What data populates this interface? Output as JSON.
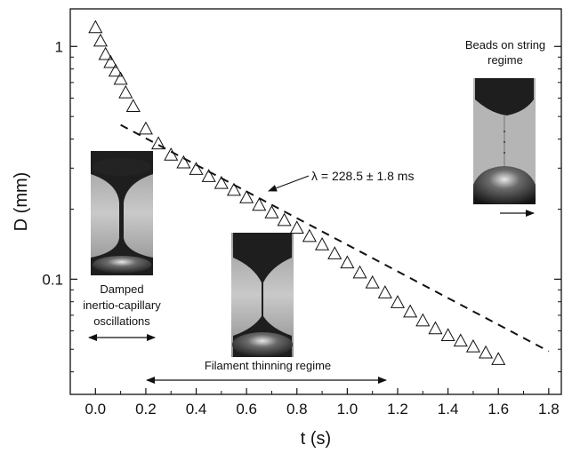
{
  "chart_data": {
    "type": "scatter",
    "title": "",
    "xlabel": "t (s)",
    "ylabel": "D (mm)",
    "xlim": [
      -0.1,
      1.85
    ],
    "ylim": [
      0.032,
      1.45
    ],
    "yscale": "log",
    "grid": false,
    "legend": "none",
    "x_ticks": [
      0.0,
      0.2,
      0.4,
      0.6,
      0.8,
      1.0,
      1.2,
      1.4,
      1.6,
      1.8
    ],
    "x_tick_labels": [
      "0.0",
      "0.2",
      "0.4",
      "0.6",
      "0.8",
      "1.0",
      "1.2",
      "1.4",
      "1.6",
      "1.8"
    ],
    "y_ticks": [
      1,
      0.1
    ],
    "y_tick_labels": [
      "1",
      "0.1"
    ],
    "series": [
      {
        "marker": "open-triangle",
        "x": [
          0.0,
          0.02,
          0.04,
          0.06,
          0.08,
          0.1,
          0.12,
          0.15,
          0.2,
          0.25,
          0.3,
          0.35,
          0.4,
          0.45,
          0.5,
          0.55,
          0.6,
          0.65,
          0.7,
          0.75,
          0.8,
          0.85,
          0.9,
          0.95,
          1.0,
          1.05,
          1.1,
          1.15,
          1.2,
          1.25,
          1.3,
          1.35,
          1.4,
          1.45,
          1.5,
          1.55,
          1.6
        ],
        "y": [
          1.2,
          1.05,
          0.92,
          0.85,
          0.78,
          0.72,
          0.63,
          0.55,
          0.44,
          0.38,
          0.34,
          0.315,
          0.295,
          0.275,
          0.257,
          0.24,
          0.223,
          0.207,
          0.192,
          0.178,
          0.165,
          0.152,
          0.14,
          0.128,
          0.117,
          0.106,
          0.096,
          0.087,
          0.079,
          0.072,
          0.066,
          0.061,
          0.057,
          0.054,
          0.051,
          0.048,
          0.045
        ]
      },
      {
        "name": "exponential fit",
        "type": "line",
        "style": "dashed",
        "x": [
          0.1,
          1.8
        ],
        "y": [
          0.46,
          0.049
        ]
      }
    ],
    "annotations": {
      "fit_label": "λ = 228.5 ± 1.8 ms",
      "regime_1": [
        "Damped",
        "inertio-capillary",
        "oscillations"
      ],
      "regime_2": "Filament thinning regime",
      "regime_3": [
        "Beads on string",
        "regime"
      ]
    }
  }
}
